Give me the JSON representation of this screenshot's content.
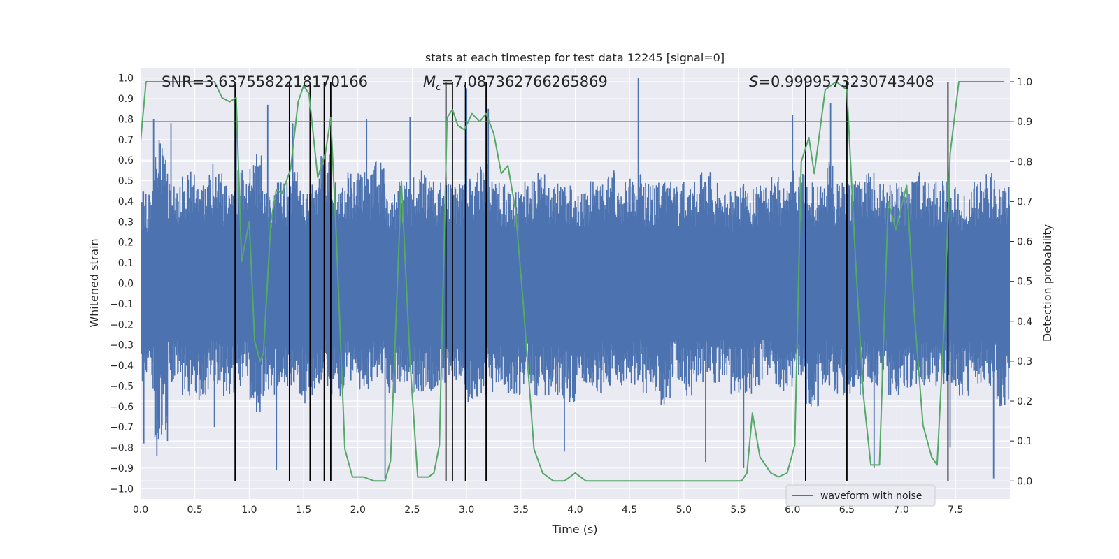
{
  "chart_data": {
    "type": "line",
    "title": "stats at each timestep for test data 12245 [signal=0]",
    "xlabel": "Time (s)",
    "ylabel_left": "Whitened strain",
    "ylabel_right": "Detection probability",
    "xlim": [
      0,
      8
    ],
    "ylim_left": [
      -1.05,
      1.05
    ],
    "ylim_right": [
      -0.045,
      1.035
    ],
    "xticks": [
      "0.0",
      "0.5",
      "1.0",
      "1.5",
      "2.0",
      "2.5",
      "3.0",
      "3.5",
      "4.0",
      "4.5",
      "5.0",
      "5.5",
      "6.0",
      "6.5",
      "7.0",
      "7.5"
    ],
    "yticks_left": [
      "-1.0",
      "-0.9",
      "-0.8",
      "-0.7",
      "-0.6",
      "-0.5",
      "-0.4",
      "-0.3",
      "-0.2",
      "-0.1",
      "0.0",
      "0.1",
      "0.2",
      "0.3",
      "0.4",
      "0.5",
      "0.6",
      "0.7",
      "0.8",
      "0.9",
      "1.0"
    ],
    "yticks_right": [
      "0.0",
      "0.1",
      "0.2",
      "0.3",
      "0.4",
      "0.5",
      "0.6",
      "0.7",
      "0.8",
      "0.9",
      "1.0"
    ],
    "annotations": {
      "snr": "SNR=3.6375582218170166",
      "mc_symbol": "M",
      "mc_sub": "c",
      "mc_value": "=7.087362766265869",
      "s_symbol": "S",
      "s_value": "=0.9999573230743408"
    },
    "threshold": {
      "value": 0.9,
      "axis": "right",
      "color": "#c44e52"
    },
    "event_times": [
      0.87,
      1.37,
      1.56,
      1.69,
      1.75,
      2.81,
      2.87,
      2.99,
      3.18,
      6.12,
      6.5,
      7.43
    ],
    "detection_probability": {
      "color": "#55a868",
      "x": [
        0.0,
        0.05,
        0.1,
        0.2,
        0.3,
        0.4,
        0.5,
        0.6,
        0.68,
        0.75,
        0.82,
        0.88,
        0.93,
        1.0,
        1.05,
        1.1,
        1.13,
        1.2,
        1.25,
        1.3,
        1.38,
        1.45,
        1.5,
        1.55,
        1.63,
        1.7,
        1.75,
        1.8,
        1.88,
        1.95,
        2.05,
        2.15,
        2.25,
        2.3,
        2.4,
        2.48,
        2.55,
        2.65,
        2.7,
        2.75,
        2.82,
        2.87,
        2.92,
        2.98,
        3.05,
        3.12,
        3.18,
        3.25,
        3.32,
        3.38,
        3.45,
        3.52,
        3.62,
        3.7,
        3.8,
        3.9,
        4.0,
        4.1,
        4.2,
        4.3,
        4.5,
        4.7,
        4.9,
        5.1,
        5.3,
        5.45,
        5.53,
        5.58,
        5.63,
        5.7,
        5.8,
        5.87,
        5.95,
        6.02,
        6.08,
        6.15,
        6.2,
        6.3,
        6.4,
        6.5,
        6.58,
        6.65,
        6.72,
        6.8,
        6.88,
        6.95,
        7.05,
        7.12,
        7.2,
        7.28,
        7.33,
        7.4,
        7.45,
        7.53,
        7.6,
        7.7,
        7.8,
        7.95
      ],
      "y": [
        0.85,
        1.0,
        1.0,
        1.0,
        1.0,
        1.0,
        1.0,
        1.0,
        1.0,
        0.96,
        0.95,
        0.96,
        0.55,
        0.65,
        0.35,
        0.3,
        0.32,
        0.65,
        0.73,
        0.72,
        0.78,
        0.95,
        0.99,
        0.97,
        0.76,
        0.82,
        0.91,
        0.62,
        0.08,
        0.01,
        0.01,
        0.0,
        0.0,
        0.05,
        0.75,
        0.3,
        0.01,
        0.01,
        0.02,
        0.09,
        0.91,
        0.93,
        0.89,
        0.88,
        0.92,
        0.9,
        0.92,
        0.87,
        0.77,
        0.79,
        0.68,
        0.45,
        0.08,
        0.02,
        0.0,
        0.0,
        0.02,
        0.0,
        0.0,
        0.0,
        0.0,
        0.0,
        0.0,
        0.0,
        0.0,
        0.0,
        0.0,
        0.02,
        0.17,
        0.06,
        0.02,
        0.01,
        0.02,
        0.09,
        0.8,
        0.86,
        0.77,
        0.98,
        1.0,
        0.98,
        0.55,
        0.22,
        0.04,
        0.04,
        0.7,
        0.63,
        0.74,
        0.42,
        0.14,
        0.06,
        0.04,
        0.42,
        0.82,
        1.0,
        1.0,
        1.0,
        1.0,
        1.0
      ]
    },
    "waveform": {
      "name": "waveform with noise",
      "color": "#4c72b0",
      "envelope_upper": [
        0.45,
        0.7,
        0.5,
        0.55,
        0.5,
        0.6,
        0.5,
        0.55,
        0.65,
        0.45,
        0.5,
        0.55,
        0.5,
        0.65,
        0.5,
        0.55,
        0.55,
        0.6,
        0.45,
        0.5,
        0.55,
        0.5,
        0.5,
        0.5,
        0.55,
        0.6,
        0.5,
        0.45,
        0.5,
        0.55,
        0.5,
        0.5,
        0.45,
        0.5,
        0.55,
        0.5,
        0.55,
        0.5,
        0.5,
        0.5,
        0.5,
        0.55,
        0.5,
        0.45,
        0.5,
        0.5,
        0.55,
        0.5,
        0.55,
        0.5,
        0.6,
        0.5,
        0.5,
        0.55,
        0.5,
        0.5,
        0.5,
        0.55,
        0.5,
        0.5,
        0.45,
        0.5,
        0.55,
        0.5
      ],
      "envelope_lower": [
        -0.55,
        -0.8,
        -0.5,
        -0.55,
        -0.6,
        -0.5,
        -0.55,
        -0.5,
        -0.65,
        -0.55,
        -0.5,
        -0.55,
        -0.6,
        -0.5,
        -0.55,
        -0.5,
        -0.55,
        -0.5,
        -0.55,
        -0.5,
        -0.55,
        -0.55,
        -0.5,
        -0.5,
        -0.6,
        -0.55,
        -0.5,
        -0.55,
        -0.5,
        -0.55,
        -0.55,
        -0.6,
        -0.5,
        -0.55,
        -0.5,
        -0.55,
        -0.5,
        -0.55,
        -0.6,
        -0.5,
        -0.55,
        -0.5,
        -0.5,
        -0.55,
        -0.55,
        -0.5,
        -0.5,
        -0.55,
        -0.5,
        -0.6,
        -0.5,
        -0.55,
        -0.55,
        -0.5,
        -0.5,
        -0.55,
        -0.55,
        -0.5,
        -0.5,
        -0.5,
        -0.55,
        -0.5,
        -0.5,
        -0.6
      ],
      "spikes": [
        [
          0.03,
          -0.78
        ],
        [
          0.12,
          0.8
        ],
        [
          0.15,
          -0.84
        ],
        [
          0.28,
          0.78
        ],
        [
          0.68,
          -0.7
        ],
        [
          0.88,
          0.8
        ],
        [
          1.17,
          0.87
        ],
        [
          1.25,
          -0.91
        ],
        [
          1.4,
          0.78
        ],
        [
          2.08,
          0.8
        ],
        [
          2.25,
          -0.95
        ],
        [
          2.48,
          0.81
        ],
        [
          3.0,
          0.95
        ],
        [
          3.2,
          0.85
        ],
        [
          3.9,
          -0.82
        ],
        [
          4.58,
          1.0
        ],
        [
          5.2,
          -0.87
        ],
        [
          5.55,
          -0.9
        ],
        [
          6.0,
          0.82
        ],
        [
          6.35,
          0.88
        ],
        [
          6.75,
          -0.9
        ],
        [
          7.45,
          -0.8
        ],
        [
          7.85,
          -0.95
        ]
      ]
    },
    "legend": {
      "label": "waveform with noise",
      "placement": "lower-right"
    },
    "grid": true
  }
}
